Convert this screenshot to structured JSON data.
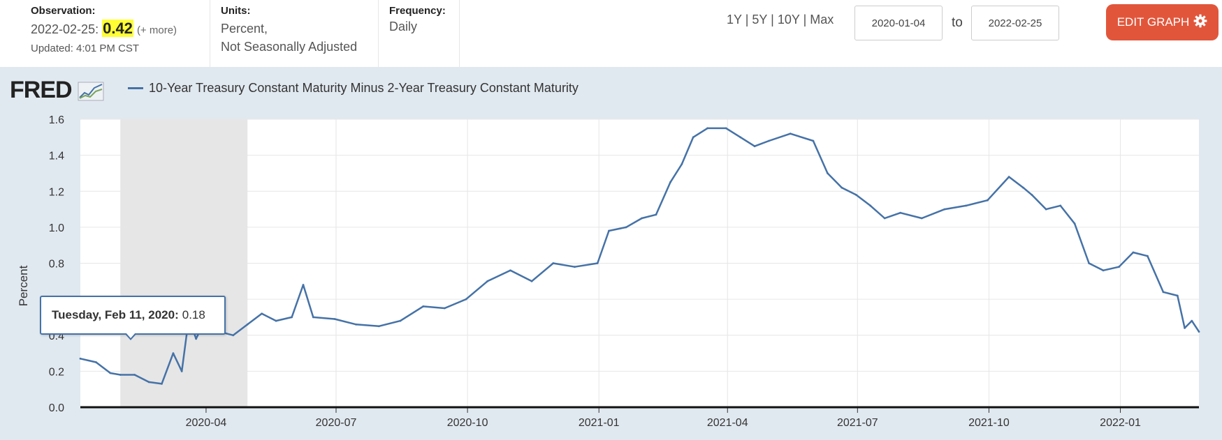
{
  "header": {
    "observation_label": "Observation:",
    "observation_date": "2022-02-25:",
    "observation_value": "0.42",
    "observation_more": "(+ more)",
    "updated": "Updated: 4:01 PM CST",
    "units_label": "Units:",
    "units_line1": "Percent,",
    "units_line2": "Not Seasonally Adjusted",
    "frequency_label": "Frequency:",
    "frequency_value": "Daily",
    "range_1y": "1Y",
    "range_5y": "5Y",
    "range_10y": "10Y",
    "range_max": "Max",
    "range_sep": "|",
    "date_start": "2020-01-04",
    "date_to": "to",
    "date_end": "2022-02-25",
    "edit_graph": "EDIT GRAPH"
  },
  "logo": "FRED",
  "legend_label": "10-Year Treasury Constant Maturity Minus 2-Year Treasury Constant Maturity",
  "tooltip": {
    "date": "Tuesday, Feb 11, 2020:",
    "value": "0.18"
  },
  "colors": {
    "series": "#4572a7",
    "edit_button": "#e1563b",
    "chart_background": "#e1e9f0",
    "recession_shade": "#e6e6e6",
    "highlight": "#ffff33"
  },
  "chart_data": {
    "type": "line",
    "ylabel": "Percent",
    "ylim": [
      0,
      1.6
    ],
    "yticks": [
      "0.0",
      "0.2",
      "0.4",
      "0.6",
      "0.8",
      "1.0",
      "1.2",
      "1.4",
      "1.6"
    ],
    "xlim": [
      "2020-01-04",
      "2022-02-25"
    ],
    "xticks": [
      "2020-04",
      "2020-07",
      "2020-10",
      "2021-01",
      "2021-04",
      "2021-07",
      "2021-10",
      "2022-01"
    ],
    "recession": [
      "2020-02-01",
      "2020-04-30"
    ],
    "grid": true,
    "series": [
      {
        "name": "10-Year Treasury Constant Maturity Minus 2-Year Treasury Constant Maturity",
        "x": [
          "2020-01-04",
          "2020-01-15",
          "2020-01-25",
          "2020-02-01",
          "2020-02-11",
          "2020-02-21",
          "2020-03-01",
          "2020-03-09",
          "2020-03-15",
          "2020-03-20",
          "2020-03-25",
          "2020-03-31",
          "2020-04-10",
          "2020-04-20",
          "2020-04-30",
          "2020-05-10",
          "2020-05-20",
          "2020-05-31",
          "2020-06-08",
          "2020-06-15",
          "2020-06-30",
          "2020-07-15",
          "2020-07-31",
          "2020-08-15",
          "2020-08-31",
          "2020-09-15",
          "2020-09-30",
          "2020-10-15",
          "2020-10-31",
          "2020-11-15",
          "2020-11-30",
          "2020-12-15",
          "2020-12-31",
          "2021-01-08",
          "2021-01-20",
          "2021-01-31",
          "2021-02-10",
          "2021-02-20",
          "2021-02-28",
          "2021-03-08",
          "2021-03-18",
          "2021-03-31",
          "2021-04-10",
          "2021-04-20",
          "2021-04-30",
          "2021-05-15",
          "2021-05-31",
          "2021-06-10",
          "2021-06-20",
          "2021-06-30",
          "2021-07-10",
          "2021-07-20",
          "2021-07-31",
          "2021-08-15",
          "2021-08-31",
          "2021-09-15",
          "2021-09-30",
          "2021-10-15",
          "2021-10-25",
          "2021-10-31",
          "2021-11-10",
          "2021-11-20",
          "2021-11-30",
          "2021-12-10",
          "2021-12-20",
          "2021-12-31",
          "2022-01-10",
          "2022-01-20",
          "2022-01-31",
          "2022-02-10",
          "2022-02-15",
          "2022-02-20",
          "2022-02-25"
        ],
        "values": [
          0.27,
          0.25,
          0.19,
          0.18,
          0.18,
          0.14,
          0.13,
          0.3,
          0.2,
          0.5,
          0.38,
          0.48,
          0.42,
          0.4,
          0.46,
          0.52,
          0.48,
          0.5,
          0.68,
          0.5,
          0.49,
          0.46,
          0.45,
          0.48,
          0.56,
          0.55,
          0.6,
          0.7,
          0.76,
          0.7,
          0.8,
          0.78,
          0.8,
          0.98,
          1.0,
          1.05,
          1.07,
          1.25,
          1.35,
          1.5,
          1.55,
          1.55,
          1.5,
          1.45,
          1.48,
          1.52,
          1.48,
          1.3,
          1.22,
          1.18,
          1.12,
          1.05,
          1.08,
          1.05,
          1.1,
          1.12,
          1.15,
          1.28,
          1.22,
          1.18,
          1.1,
          1.12,
          1.02,
          0.8,
          0.76,
          0.78,
          0.86,
          0.84,
          0.64,
          0.62,
          0.44,
          0.48,
          0.42
        ]
      }
    ]
  }
}
